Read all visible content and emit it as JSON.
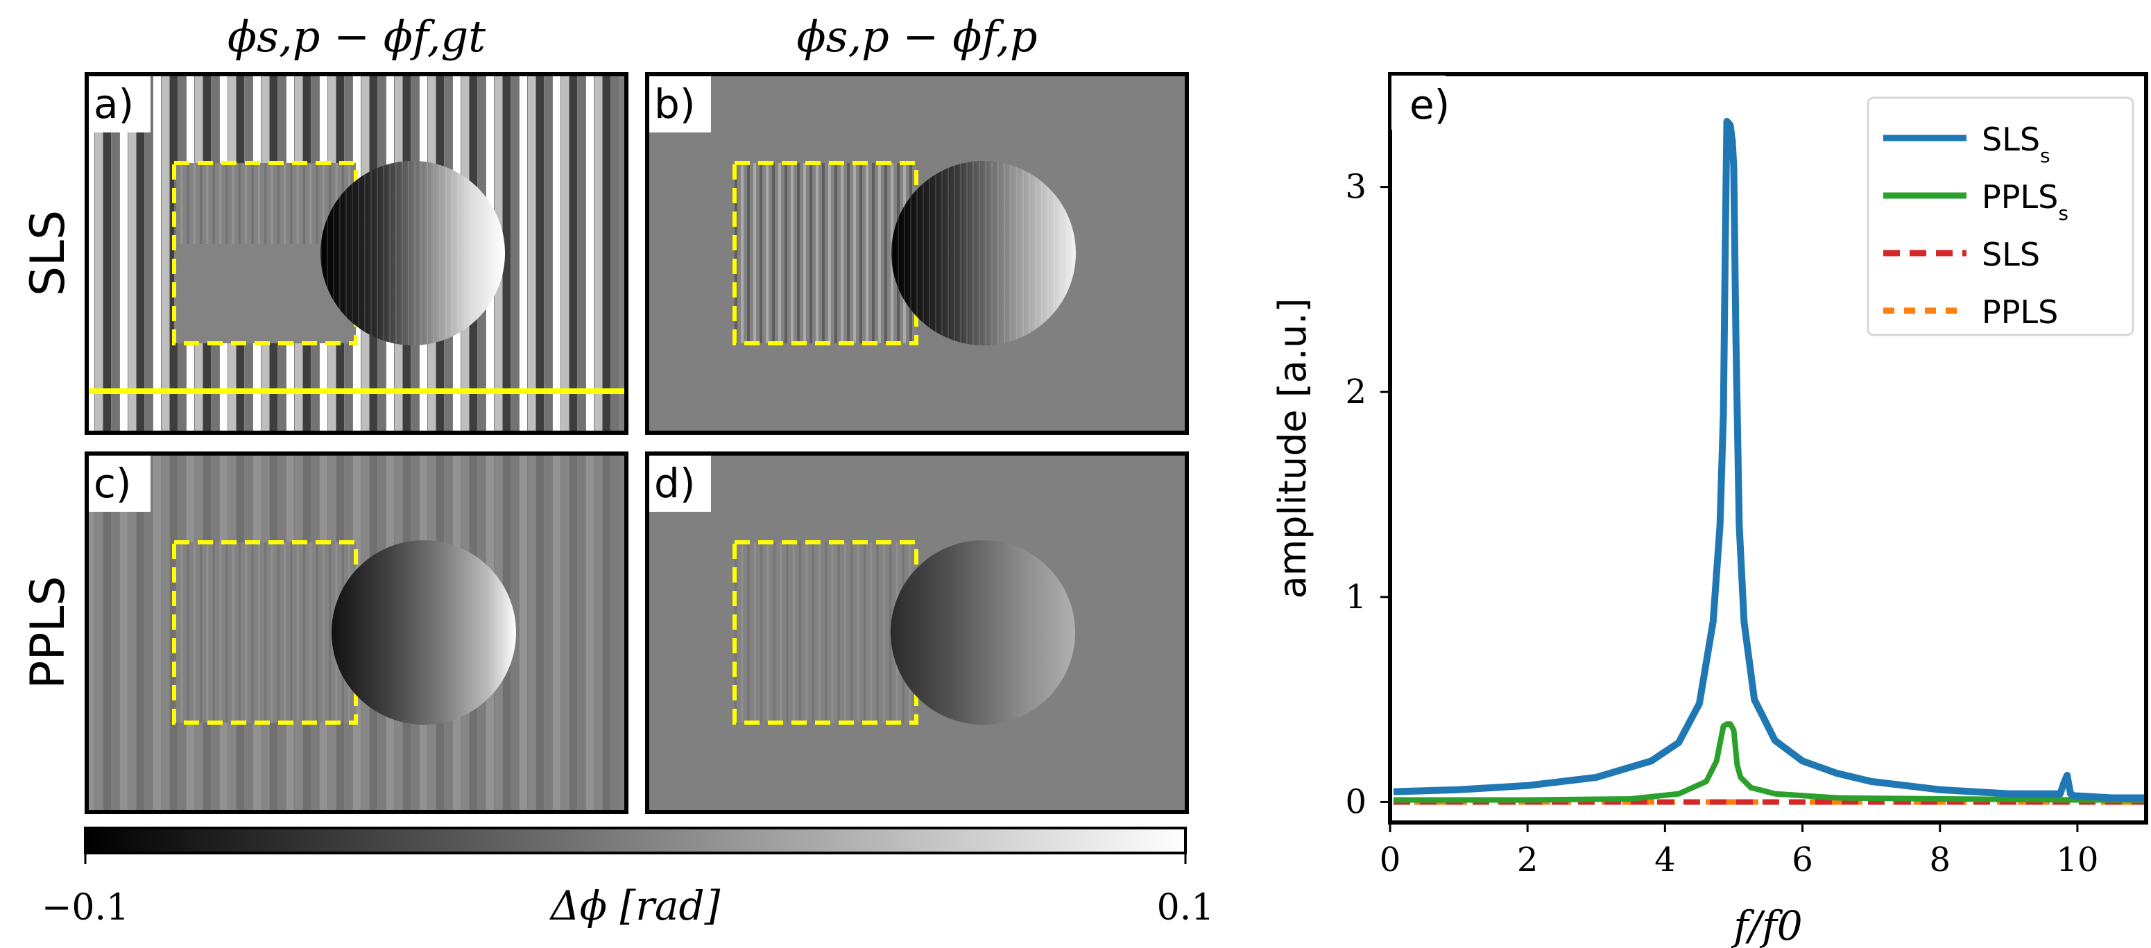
{
  "figure": {
    "column_titles": {
      "left": "ϕs,p − ϕf,gt",
      "right": "ϕs,p − ϕf,p"
    },
    "row_titles": {
      "top": "SLS",
      "bottom": "PPLS"
    },
    "panel_labels": {
      "a": "a)",
      "b": "b)",
      "c": "c)",
      "d": "d)",
      "e": "e)"
    },
    "colorbar": {
      "min_label": "−0.1",
      "max_label": "0.1",
      "label": "Δϕ [rad]",
      "range": [
        -0.1,
        0.1
      ]
    },
    "phase_maps": [
      {
        "id": "a",
        "row": "SLS",
        "column": "left",
        "background": "stripes",
        "stripe_contrast": "high",
        "has_horizontal_yellow_line": true,
        "circle_gradient": "stripes-and-shade"
      },
      {
        "id": "b",
        "row": "SLS",
        "column": "right",
        "background": "flat",
        "stripe_contrast": "none",
        "has_horizontal_yellow_line": false,
        "circle_gradient": "stripes-and-shade"
      },
      {
        "id": "c",
        "row": "PPLS",
        "column": "left",
        "background": "stripes",
        "stripe_contrast": "low",
        "has_horizontal_yellow_line": false,
        "circle_gradient": "smooth-shade"
      },
      {
        "id": "d",
        "row": "PPLS",
        "column": "right",
        "background": "flat",
        "stripe_contrast": "none",
        "has_horizontal_yellow_line": false,
        "circle_gradient": "smooth-shade"
      }
    ],
    "colors": {
      "gray_background": "#808080",
      "yellow_marker": "#ffff00",
      "sls_s": "#1f77b4",
      "ppls_s": "#2ca02c",
      "sls": "#d62728",
      "ppls": "#ff7f0e"
    }
  },
  "chart_data": {
    "type": "line",
    "title": "",
    "panel_label": "e)",
    "xlabel": "f/f0",
    "ylabel": "amplitude [a.u.]",
    "xlim": [
      0,
      11
    ],
    "ylim": [
      -0.1,
      3.55
    ],
    "xticks": [
      0,
      2,
      4,
      6,
      8,
      10
    ],
    "yticks": [
      0,
      1,
      2,
      3
    ],
    "legend_position": "top-right",
    "series": [
      {
        "name": "SLSs",
        "legend_main": "SLS",
        "legend_sub": "s",
        "style": "solid",
        "color": "#1f77b4",
        "x": [
          0.05,
          1.0,
          2.0,
          3.0,
          3.8,
          4.2,
          4.5,
          4.7,
          4.8,
          4.85,
          4.88,
          4.9,
          4.93,
          4.95,
          4.98,
          5.0,
          5.03,
          5.08,
          5.15,
          5.3,
          5.6,
          6.0,
          6.5,
          7.0,
          8.0,
          9.0,
          9.75,
          9.8,
          9.85,
          9.9,
          9.95,
          10.0,
          10.5,
          11.0
        ],
        "values": [
          0.05,
          0.06,
          0.08,
          0.12,
          0.2,
          0.29,
          0.48,
          0.88,
          1.35,
          1.9,
          2.8,
          3.32,
          3.31,
          3.3,
          3.22,
          3.1,
          2.3,
          1.35,
          0.88,
          0.5,
          0.3,
          0.2,
          0.14,
          0.1,
          0.06,
          0.04,
          0.04,
          0.09,
          0.13,
          0.04,
          0.03,
          0.03,
          0.02,
          0.02
        ]
      },
      {
        "name": "PPLSs",
        "legend_main": "PPLS",
        "legend_sub": "s",
        "style": "solid",
        "color": "#2ca02c",
        "x": [
          0.05,
          2.0,
          3.5,
          4.2,
          4.6,
          4.75,
          4.85,
          4.9,
          4.95,
          5.0,
          5.05,
          5.1,
          5.25,
          5.6,
          6.5,
          8.0,
          10.0,
          11.0
        ],
        "values": [
          0.01,
          0.01,
          0.015,
          0.04,
          0.1,
          0.2,
          0.37,
          0.38,
          0.38,
          0.35,
          0.18,
          0.12,
          0.07,
          0.04,
          0.02,
          0.015,
          0.01,
          0.01
        ]
      },
      {
        "name": "SLS",
        "legend_main": "SLS",
        "legend_sub": "",
        "style": "dashed",
        "color": "#d62728",
        "x": [
          0.05,
          11.0
        ],
        "values": [
          0.0,
          0.0
        ]
      },
      {
        "name": "PPLS",
        "legend_main": "PPLS",
        "legend_sub": "",
        "style": "dashed",
        "color": "#ff7f0e",
        "x": [
          0.05,
          11.0
        ],
        "values": [
          0.0,
          0.0
        ]
      }
    ]
  }
}
